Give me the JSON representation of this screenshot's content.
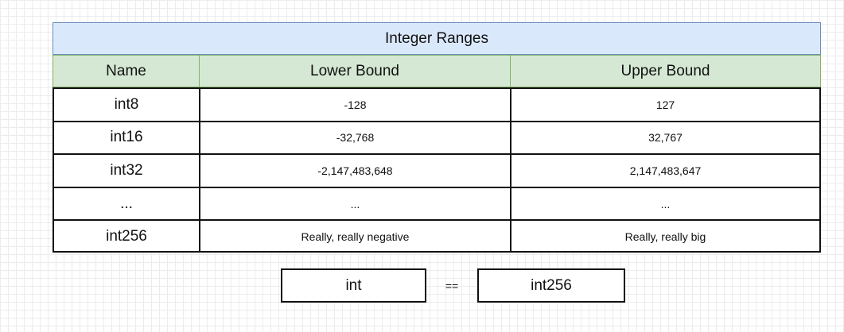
{
  "table": {
    "title": "Integer Ranges",
    "headers": [
      "Name",
      "Lower Bound",
      "Upper Bound"
    ],
    "rows": [
      [
        "int8",
        "-128",
        "127"
      ],
      [
        "int16",
        "-32,768",
        "32,767"
      ],
      [
        "int32",
        "-2,147,483,648",
        "2,147,483,647"
      ],
      [
        "...",
        "...",
        "..."
      ],
      [
        "int256",
        "Really, really negative",
        "Really, really big"
      ]
    ]
  },
  "equation": {
    "left": "int",
    "operator": "==",
    "right": "int256"
  },
  "colors": {
    "title_fill": "#dae8fc",
    "title_stroke": "#6c8ebf",
    "header_fill": "#d5e8d4",
    "header_stroke": "#82b366"
  }
}
